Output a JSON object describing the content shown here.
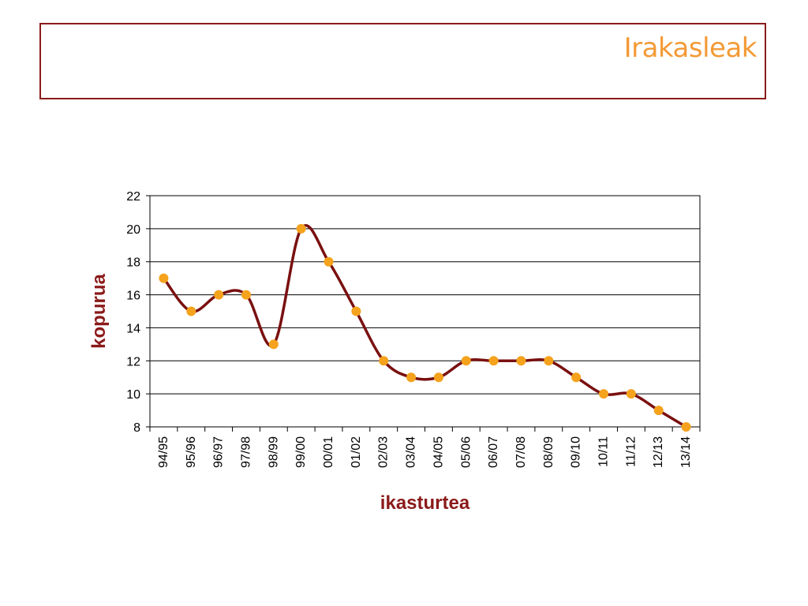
{
  "slide": {
    "title": "Irakasleak"
  },
  "colors": {
    "title": "#f39a36",
    "frame": "#8b1a1a",
    "line": "#7a1010",
    "marker": "#f5a21c",
    "grid": "#000000"
  },
  "chart_data": {
    "type": "line",
    "title": "",
    "xlabel": "ikasturtea",
    "ylabel": "kopurua",
    "categories": [
      "94/95",
      "95/96",
      "96/97",
      "97/98",
      "98/99",
      "99/00",
      "00/01",
      "01/02",
      "02/03",
      "03/04",
      "04/05",
      "05/06",
      "06/07",
      "07/08",
      "08/09",
      "09/10",
      "10/11",
      "11/12",
      "12/13",
      "13/14"
    ],
    "series": [
      {
        "values": [
          17,
          15,
          16,
          16,
          13,
          20,
          18,
          15,
          12,
          11,
          11,
          12,
          12,
          12,
          12,
          11,
          10,
          10,
          9,
          8
        ],
        "smooth": true,
        "markers": true
      }
    ],
    "yticks": [
      8,
      10,
      12,
      14,
      16,
      18,
      20,
      22
    ],
    "ylim": [
      8,
      22
    ],
    "grid": "horizontal",
    "legend": "none"
  }
}
